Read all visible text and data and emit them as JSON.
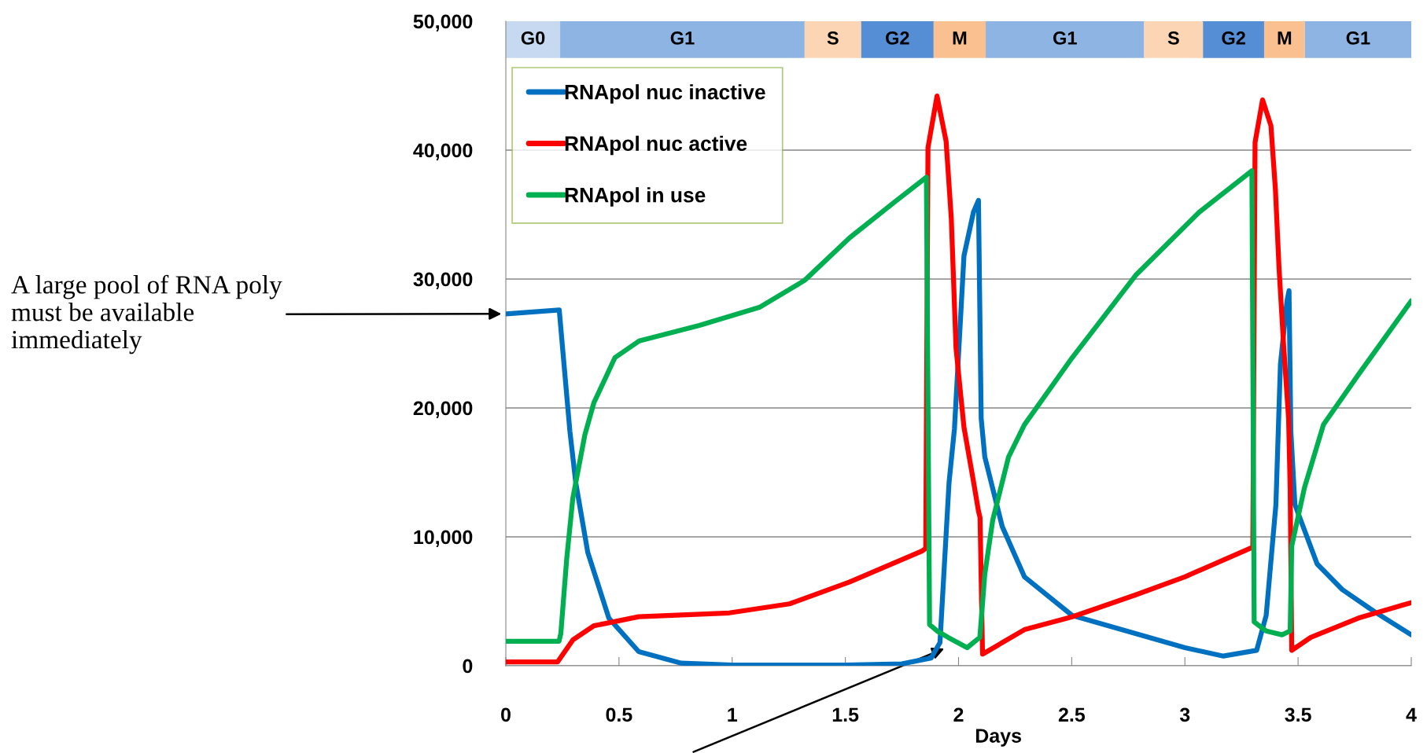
{
  "chart_data": {
    "type": "line",
    "xlabel": "Days",
    "xlim": [
      0,
      4
    ],
    "xticks": [
      0,
      0.5,
      1,
      1.5,
      2,
      2.5,
      3,
      3.5,
      4
    ],
    "ylim": [
      0,
      50000
    ],
    "yticks": [
      {
        "value": 0,
        "label": "0"
      },
      {
        "value": 10000,
        "label": "10,000"
      },
      {
        "value": 20000,
        "label": "20,000"
      },
      {
        "value": 30000,
        "label": "30,000"
      },
      {
        "value": 40000,
        "label": "40,000"
      },
      {
        "value": 50000,
        "label": "50,000"
      }
    ],
    "grid": "y",
    "legend": "top left",
    "marker": "none",
    "line_style": "solid",
    "series": [
      {
        "name": "RNApol nuc inactive",
        "color": "#0070c0",
        "x": [
          0,
          0.236,
          0.283,
          0.309,
          0.362,
          0.455,
          0.587,
          0.775,
          1.0,
          1.5,
          1.75,
          1.879,
          1.918,
          1.958,
          1.982,
          2.024,
          2.066,
          2.088,
          2.1,
          2.116,
          2.193,
          2.291,
          2.502,
          3.0,
          3.17,
          3.317,
          3.359,
          3.402,
          3.422,
          3.451,
          3.46,
          3.468,
          3.486,
          3.584,
          3.696,
          3.837,
          4.0
        ],
        "values": [
          27300,
          27600,
          18200,
          14200,
          8800,
          3700,
          1100,
          200,
          50,
          50,
          150,
          600,
          1800,
          14200,
          18400,
          31800,
          35200,
          36100,
          19200,
          16200,
          10800,
          6900,
          3900,
          1400,
          750,
          1200,
          3900,
          12500,
          23400,
          28300,
          29100,
          18200,
          12500,
          7900,
          5900,
          4200,
          2400
        ]
      },
      {
        "name": "RNApol nuc active",
        "color": "#ff0000",
        "x": [
          0,
          0.229,
          0.296,
          0.389,
          0.587,
          0.987,
          1.253,
          1.519,
          1.838,
          1.855,
          1.865,
          1.905,
          1.945,
          1.968,
          1.989,
          2.024,
          2.066,
          2.088,
          2.095,
          2.106,
          2.291,
          2.502,
          2.783,
          3.0,
          3.3,
          3.31,
          3.343,
          3.38,
          3.4,
          3.416,
          3.437,
          3.458,
          3.465,
          3.472,
          3.556,
          3.767,
          4.0
        ],
        "values": [
          300,
          300,
          2000,
          3100,
          3800,
          4100,
          4800,
          6500,
          8900,
          9100,
          40200,
          44200,
          40700,
          34700,
          24600,
          18500,
          14300,
          12000,
          11500,
          900,
          2800,
          3800,
          5500,
          6900,
          9200,
          40600,
          43900,
          41900,
          36900,
          30800,
          24600,
          19200,
          13800,
          1200,
          2200,
          3700,
          4900
        ]
      },
      {
        "name": "RNApol in use",
        "color": "#00b050",
        "x": [
          0,
          0.235,
          0.243,
          0.269,
          0.296,
          0.349,
          0.389,
          0.482,
          0.589,
          0.855,
          1.12,
          1.32,
          1.519,
          1.719,
          1.858,
          1.872,
          1.905,
          1.954,
          2.038,
          2.094,
          2.116,
          2.151,
          2.221,
          2.291,
          2.502,
          2.783,
          3.064,
          3.296,
          3.306,
          3.359,
          3.429,
          3.465,
          3.472,
          3.528,
          3.612,
          3.767,
          4.0
        ],
        "values": [
          1900,
          1900,
          2500,
          8300,
          13000,
          17900,
          20400,
          23900,
          25200,
          26400,
          27800,
          29900,
          33200,
          36000,
          37900,
          3200,
          2700,
          2200,
          1400,
          2200,
          7100,
          11300,
          16200,
          18700,
          23900,
          30300,
          35200,
          38400,
          3400,
          2700,
          2400,
          2700,
          9300,
          13800,
          18700,
          22600,
          28300
        ]
      }
    ],
    "bands": [
      {
        "axis": "x",
        "from": 0,
        "to": 0.24,
        "label": "G0",
        "color": "#c6d9f1"
      },
      {
        "axis": "x",
        "from": 0.24,
        "to": 1.32,
        "label": "G1",
        "color": "#8eb4e3"
      },
      {
        "axis": "x",
        "from": 1.32,
        "to": 1.57,
        "label": "S",
        "color": "#fcd5b5"
      },
      {
        "axis": "x",
        "from": 1.57,
        "to": 1.89,
        "label": "G2",
        "color": "#558ed5"
      },
      {
        "axis": "x",
        "from": 1.89,
        "to": 2.12,
        "label": "M",
        "color": "#fac090"
      },
      {
        "axis": "x",
        "from": 2.12,
        "to": 2.82,
        "label": "G1",
        "color": "#8eb4e3"
      },
      {
        "axis": "x",
        "from": 2.82,
        "to": 3.08,
        "label": "S",
        "color": "#fcd5b5"
      },
      {
        "axis": "x",
        "from": 3.08,
        "to": 3.35,
        "label": "G2",
        "color": "#558ed5"
      },
      {
        "axis": "x",
        "from": 3.35,
        "to": 3.53,
        "label": "M",
        "color": "#fac090"
      },
      {
        "axis": "x",
        "from": 3.53,
        "to": 4,
        "label": "G1",
        "color": "#8eb4e3"
      }
    ],
    "annotations": [
      {
        "text": "A large pool of RNA poly\nmust be available\nimmediately",
        "x": 0,
        "y": 27300
      }
    ]
  }
}
